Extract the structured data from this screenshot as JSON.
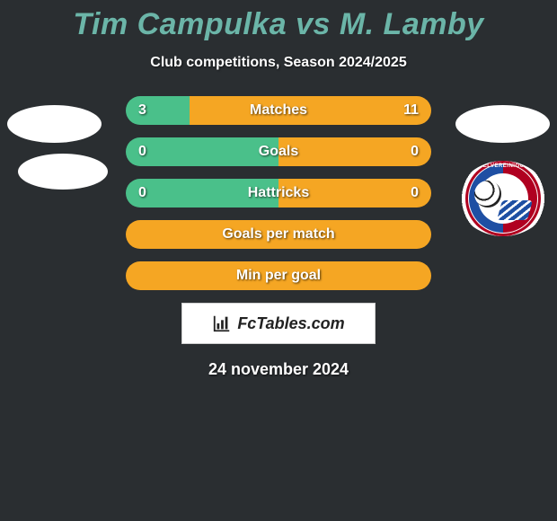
{
  "title": "Tim Campulka vs M. Lamby",
  "subtitle": "Club competitions, Season 2024/2025",
  "date": "24 november 2024",
  "brand": "FcTables.com",
  "colors": {
    "left": "#4ac08a",
    "right": "#f5a623",
    "title": "#6bb5a8",
    "bg": "#2a2e31"
  },
  "rows": [
    {
      "label": "Matches",
      "left": "3",
      "right": "11",
      "left_pct": 21,
      "right_pct": 79
    },
    {
      "label": "Goals",
      "left": "0",
      "right": "0",
      "left_pct": 50,
      "right_pct": 50
    },
    {
      "label": "Hattricks",
      "left": "0",
      "right": "0",
      "left_pct": 50,
      "right_pct": 50
    },
    {
      "label": "Goals per match",
      "left": "",
      "right": "",
      "left_pct": 0,
      "right_pct": 100
    },
    {
      "label": "Min per goal",
      "left": "",
      "right": "",
      "left_pct": 0,
      "right_pct": 100
    }
  ]
}
